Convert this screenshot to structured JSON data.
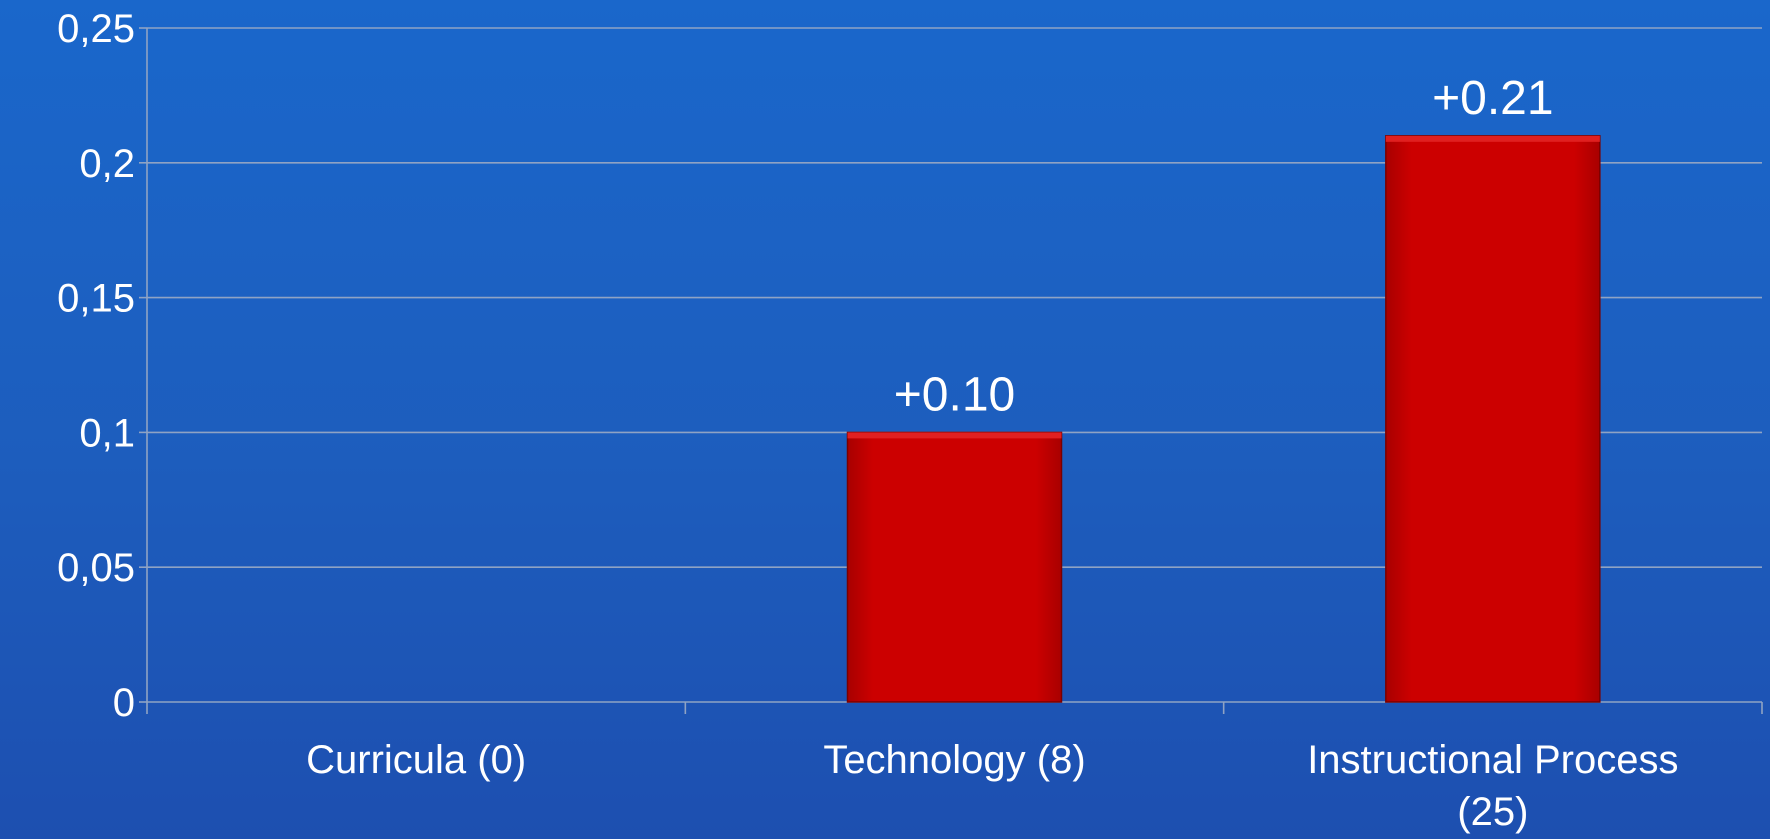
{
  "chart_data": {
    "type": "bar",
    "categories": [
      "Curricula (0)",
      "Technology (8)",
      "Instructional Process (25)"
    ],
    "category_lines": [
      [
        "Curricula (0)"
      ],
      [
        "Technology (8)"
      ],
      [
        "Instructional Process",
        "(25)"
      ]
    ],
    "values": [
      0,
      0.1,
      0.21
    ],
    "data_labels": [
      "",
      "+0.10",
      "+0.21"
    ],
    "ylim": [
      0,
      0.25
    ],
    "yticks": [
      0,
      0.05,
      0.1,
      0.15,
      0.2,
      0.25
    ],
    "ytick_labels": [
      "0",
      "0,05",
      "0,1",
      "0,15",
      "0,2",
      "0,25"
    ],
    "grid": true,
    "legend": "none",
    "colors": {
      "bar": "#cc0000",
      "bar_edge": "#7a0000",
      "text": "#ffffff",
      "grid": "#8fa3c4"
    }
  }
}
